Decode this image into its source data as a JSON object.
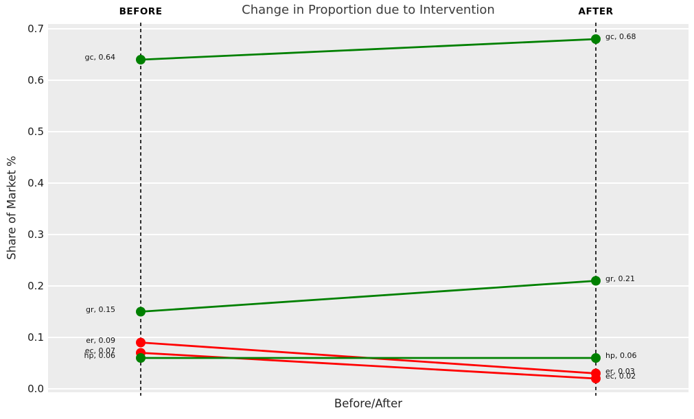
{
  "title": "Change in Proportion due to Intervention",
  "colors": {
    "increase_green": "#008000",
    "decrease_red": "#ff0000",
    "plot_background": "#ececec",
    "gridline": "#ffffff",
    "axis_guide": "#000000",
    "title_text": "#3b3b3b",
    "tick_text": "#1a1a1a"
  },
  "chart_data": {
    "type": "line",
    "subtype": "slope-chart",
    "title": "Change in Proportion due to Intervention",
    "xlabel": "Before/After",
    "ylabel": "Share of Market %",
    "x_categories": [
      "BEFORE",
      "AFTER"
    ],
    "yticks": [
      "0.0",
      "0.1",
      "0.2",
      "0.3",
      "0.4",
      "0.5",
      "0.6",
      "0.7"
    ],
    "ylim": [
      0.0,
      0.7
    ],
    "grid": true,
    "legend": false,
    "series": [
      {
        "name": "gc",
        "values": [
          0.64,
          0.68
        ],
        "color": "#008000",
        "labels": [
          "gc, 0.64",
          "gc, 0.68"
        ]
      },
      {
        "name": "gr",
        "values": [
          0.15,
          0.21
        ],
        "color": "#008000",
        "labels": [
          "gr, 0.15",
          "gr, 0.21"
        ]
      },
      {
        "name": "er",
        "values": [
          0.09,
          0.03
        ],
        "color": "#ff0000",
        "labels": [
          "er, 0.09",
          "er, 0.03"
        ]
      },
      {
        "name": "ec",
        "values": [
          0.07,
          0.02
        ],
        "color": "#ff0000",
        "labels": [
          "ec, 0.07",
          "ec, 0.02"
        ]
      },
      {
        "name": "hp",
        "values": [
          0.06,
          0.06
        ],
        "color": "#008000",
        "labels": [
          "hp, 0.06",
          "hp, 0.06"
        ]
      }
    ]
  }
}
